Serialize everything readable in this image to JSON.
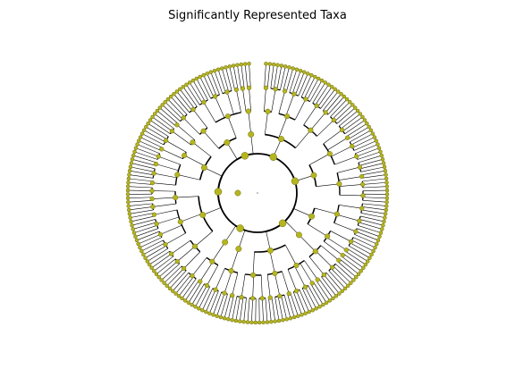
{
  "figure": {
    "title": "Significantly Represented Taxa"
  },
  "tree": {
    "layout": "radial-cladogram",
    "node_color": "#b5b520",
    "node_edge_color": "#6e6e10",
    "branch_color": "#000000",
    "arc_color": "#000000",
    "depth_levels": 6,
    "leaf_count": 200
  }
}
